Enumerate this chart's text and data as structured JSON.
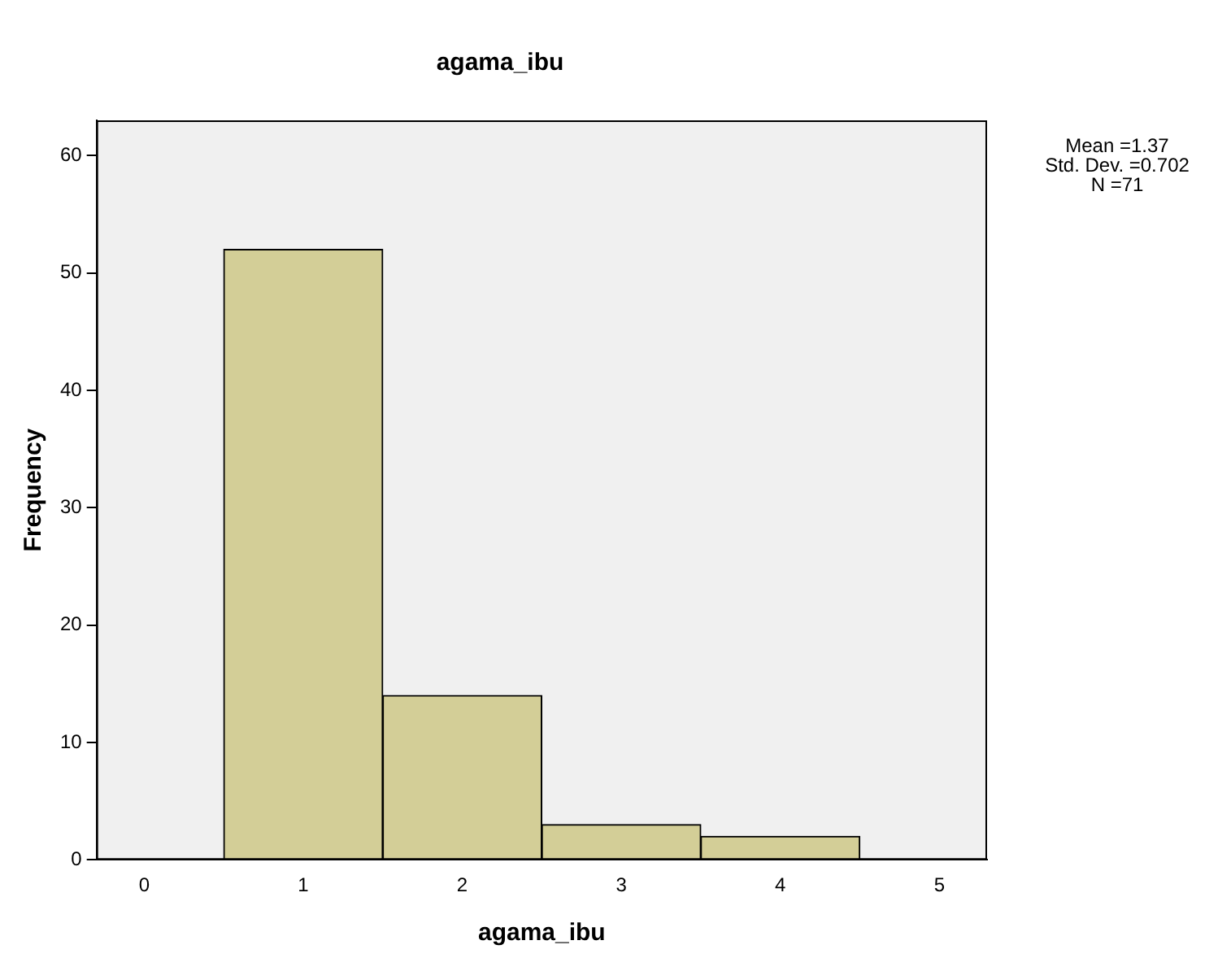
{
  "chart_data": {
    "type": "histogram",
    "title": "agama_ibu",
    "xlabel": "agama_ibu",
    "ylabel": "Frequency",
    "bins": [
      0.5,
      1.5,
      2.5,
      3.5,
      4.5
    ],
    "values": [
      52,
      14,
      3,
      2
    ],
    "color": "#d3ce97",
    "xlim": [
      -0.3,
      5.3
    ],
    "xticks": [
      0,
      1,
      2,
      3,
      4,
      5
    ],
    "ylim": [
      0,
      63
    ],
    "yticks": [
      0,
      10,
      20,
      30,
      40,
      50,
      60
    ],
    "grid": false,
    "legend": false,
    "annotations": [
      "Mean =1.37",
      "Std. Dev. =0.702",
      "N =71"
    ]
  }
}
